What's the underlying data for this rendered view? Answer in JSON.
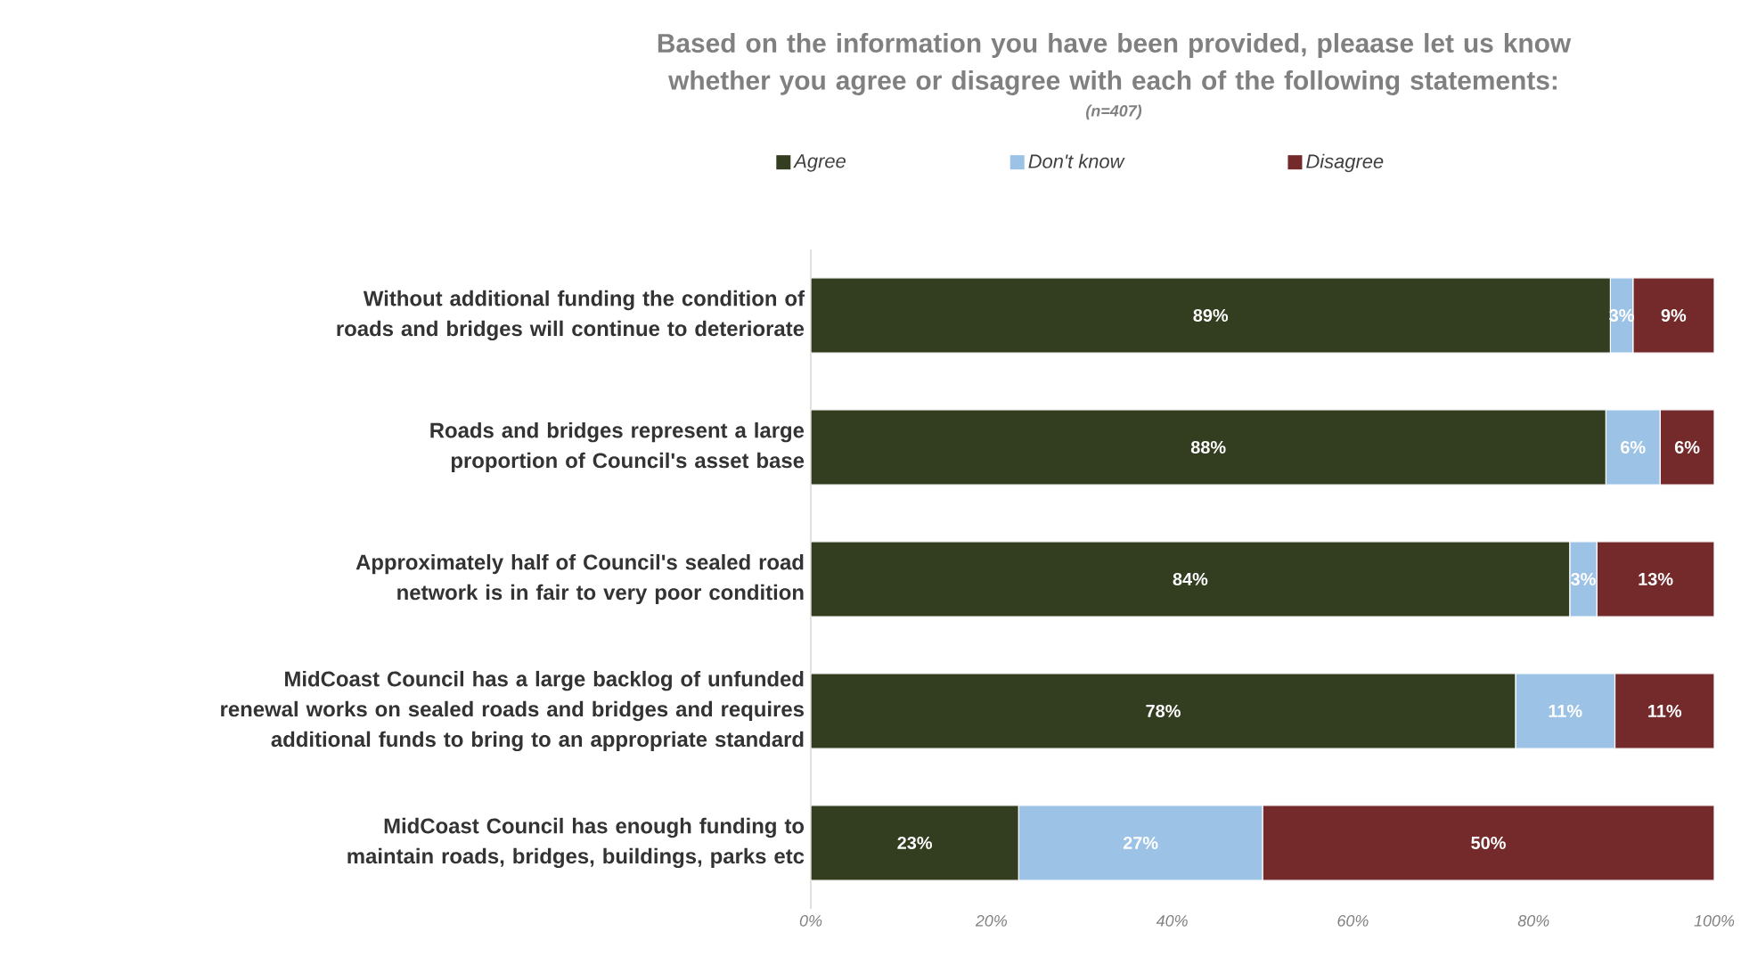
{
  "chart_data": {
    "type": "bar",
    "orientation": "horizontal",
    "stacked": true,
    "title": "Based on the information you have been provided, pleaase let us know whether you agree or disagree with each of the following statements:",
    "subtitle": "(n=407)",
    "categories": [
      "Without additional funding the condition of roads and bridges will continue to deteriorate",
      "Roads and bridges represent a large proportion of Council's asset base",
      "Approximately half of Council's sealed road network is in fair to very poor condition",
      "MidCoast Council has a large backlog of unfunded renewal works on sealed roads and bridges and requires additional funds to bring to an appropriate standard",
      "MidCoast Council has enough funding to maintain roads, bridges, buildings, parks etc"
    ],
    "series": [
      {
        "name": "Agree",
        "color": "#333d1f",
        "values": [
          88.5,
          88,
          84,
          78,
          23
        ],
        "value_labels": [
          "89%",
          "88%",
          "84%",
          "78%",
          "23%"
        ]
      },
      {
        "name": "Don't know",
        "color": "#9cc2e5",
        "values": [
          2.5,
          6,
          3,
          11,
          27
        ],
        "value_labels": [
          "3%",
          "6%",
          "3%",
          "11%",
          "27%"
        ]
      },
      {
        "name": "Disagree",
        "color": "#742a2a",
        "values": [
          9,
          6,
          13,
          11,
          50
        ],
        "value_labels": [
          "9%",
          "6%",
          "13%",
          "11%",
          "50%"
        ]
      }
    ],
    "xlim": [
      0,
      100
    ],
    "xticks": [
      {
        "value": 0,
        "label": "0%"
      },
      {
        "value": 20,
        "label": "20%"
      },
      {
        "value": 40,
        "label": "40%"
      },
      {
        "value": 60,
        "label": "60%"
      },
      {
        "value": 80,
        "label": "80%"
      },
      {
        "value": 100,
        "label": "100%"
      }
    ],
    "legend": "top",
    "grid": false
  }
}
